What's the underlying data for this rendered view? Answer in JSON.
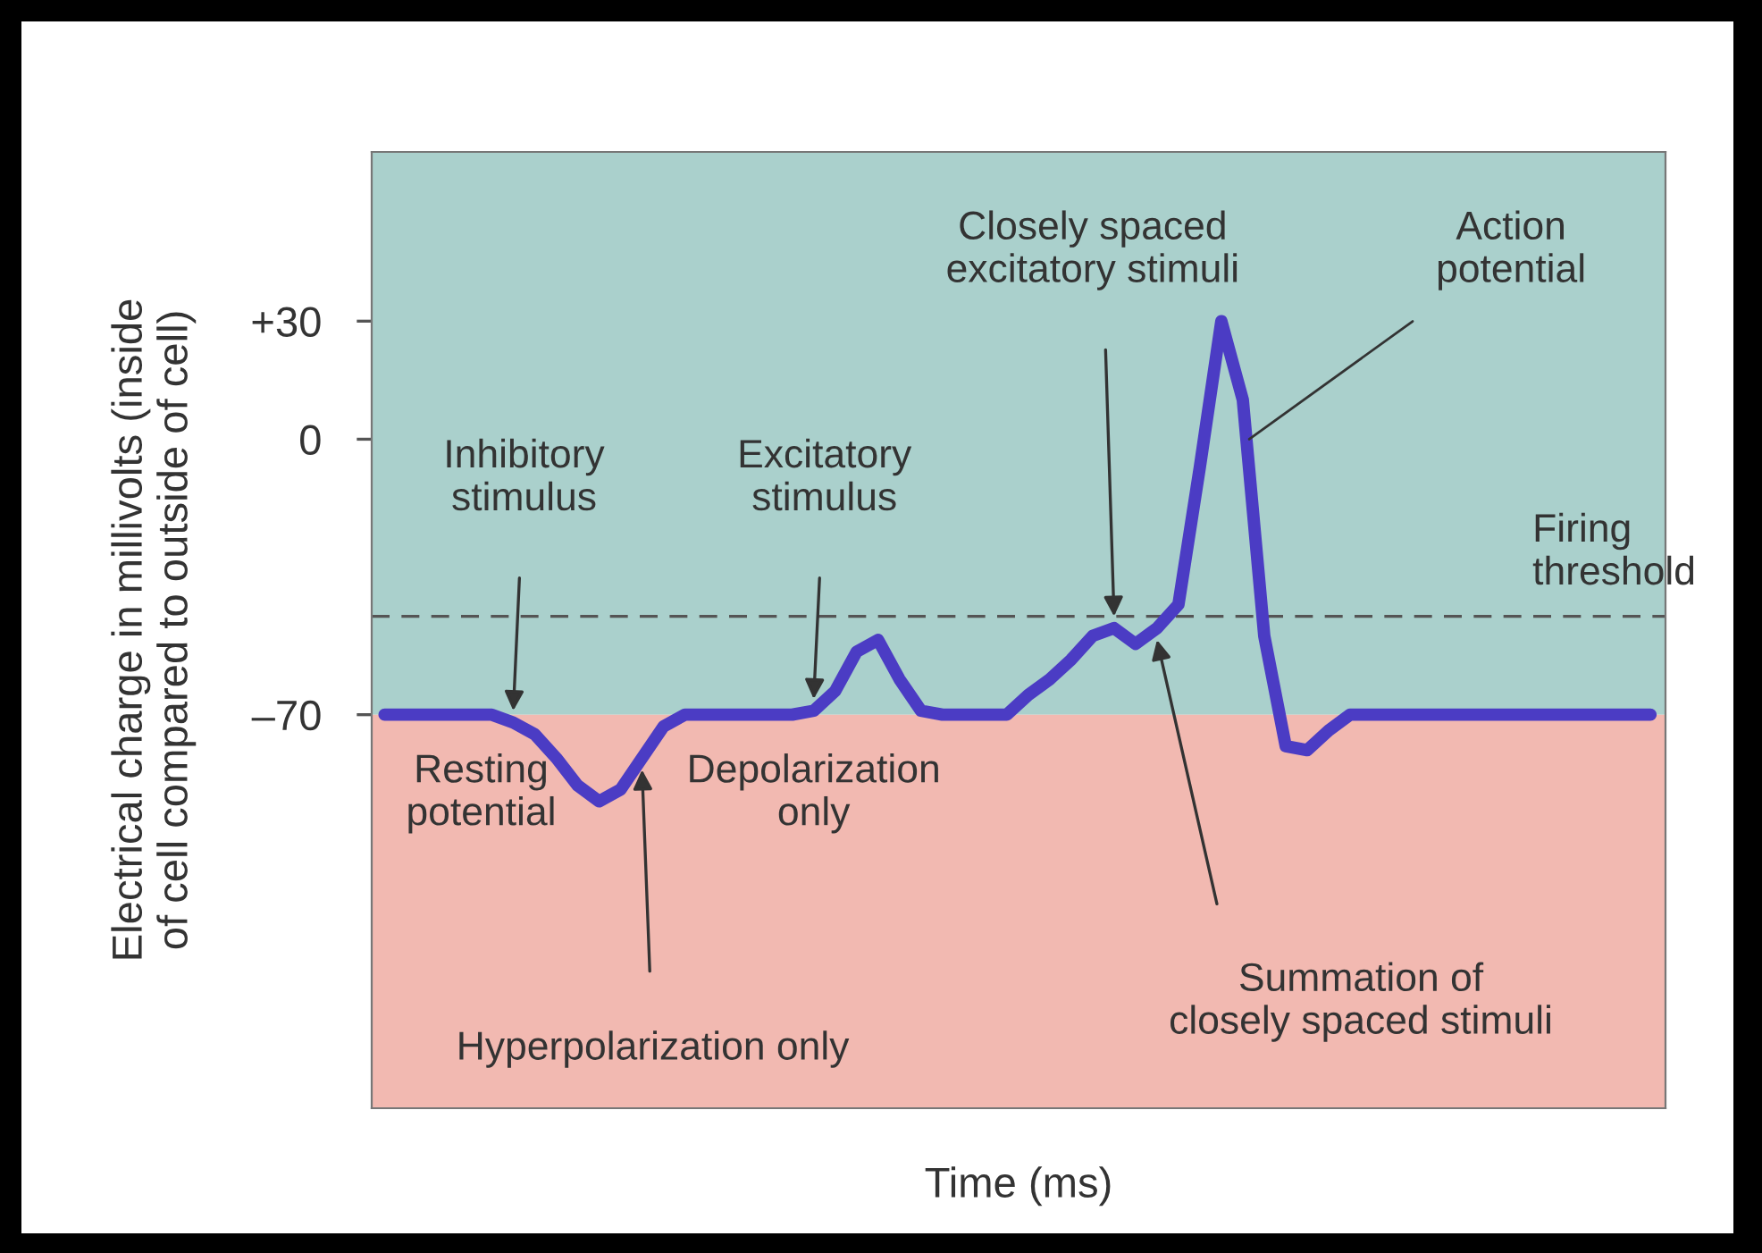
{
  "chart_data": {
    "type": "line",
    "xlabel": "Time (ms)",
    "ylabel": "Electrical charge in millivolts (inside\nof cell compared to outside of cell)",
    "categories": [
      null,
      null,
      null,
      null,
      null,
      null,
      null,
      null,
      null,
      null,
      null,
      null,
      null,
      null,
      null,
      null,
      null,
      null,
      null,
      null,
      null,
      null,
      null,
      null,
      null,
      null,
      null,
      null,
      null,
      null,
      null,
      null,
      null,
      null,
      null,
      null,
      null,
      null,
      null,
      null,
      null,
      null,
      null,
      null,
      null,
      null,
      null,
      null,
      null,
      null,
      null,
      null,
      null,
      null,
      null,
      null,
      null,
      null,
      null,
      null
    ],
    "series": [
      {
        "color": "#4b3cc4",
        "values": [
          -70,
          -70,
          -70,
          -70,
          -70,
          -70,
          -72,
          -75,
          -81,
          -88,
          -92,
          -89,
          -81,
          -73,
          -70,
          -70,
          -70,
          -70,
          -70,
          -70,
          -69,
          -64,
          -54,
          -51,
          -61,
          -69,
          -70,
          -70,
          -70,
          -70,
          -65,
          -61,
          -56,
          -50,
          -48,
          -52,
          -48,
          -42,
          -7,
          30,
          10,
          -50,
          -78,
          -79,
          -74,
          -70,
          -70,
          -70,
          -70,
          -70,
          -70,
          -70,
          -70,
          -70,
          -70,
          -70,
          -70,
          -70,
          -70,
          -70
        ]
      }
    ],
    "ylim": [
      -170,
      73
    ],
    "yticks": [
      {
        "value": 30,
        "label": "+30"
      },
      0,
      {
        "value": -70,
        "label": "–70"
      }
    ],
    "grid": false,
    "marker": "none",
    "line_style": "solid",
    "ref_lines": [
      {
        "axis": "y",
        "value": -45,
        "label": "Firing\nthreshold",
        "color": "#555555",
        "line_style": "dashed"
      }
    ],
    "bands": [
      {
        "axis": "y",
        "from": -70,
        "to": 73,
        "color": "#aad0cc"
      },
      {
        "axis": "y",
        "from": -170,
        "to": -70,
        "color": "#f2b9b1"
      }
    ],
    "annotations": [
      "Inhibitory\nstimulus",
      "Excitatory\nstimulus",
      "Closely spaced\nexcitatory stimuli",
      "Action\npotential",
      "Resting\npotential",
      "Depolarization\nonly",
      "Hyperpolarization only",
      "Summation of\nclosely spaced stimuli"
    ]
  }
}
